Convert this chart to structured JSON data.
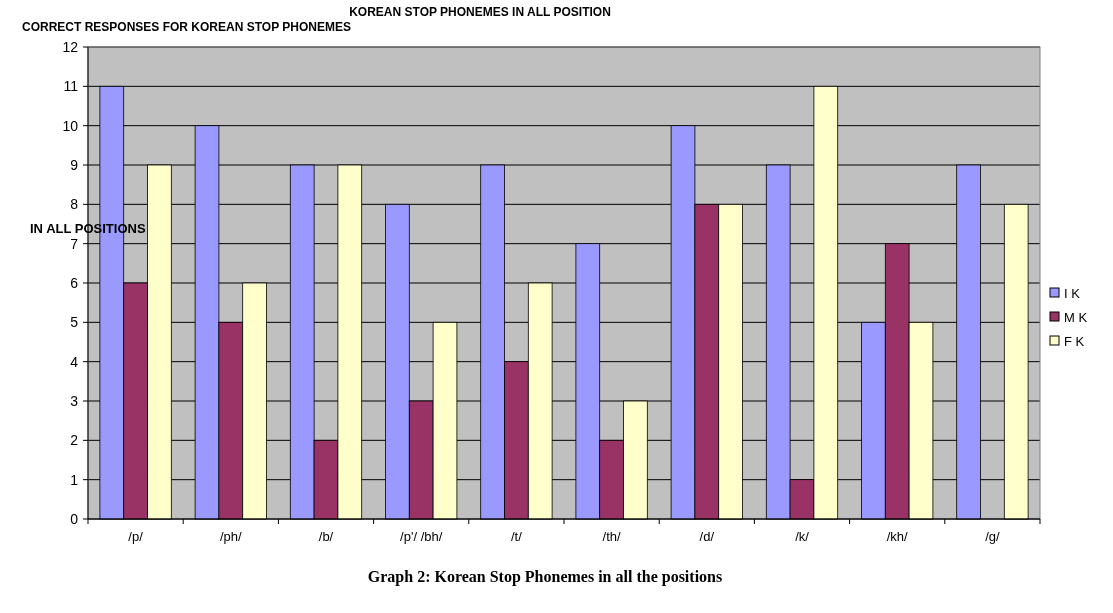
{
  "chart_data": {
    "type": "bar",
    "title": "KOREAN STOP PHONEMES IN ALL POSITION",
    "subtitle": "CORRECT RESPONSES FOR KOREAN STOP PHONEMES",
    "ylabel": "IN ALL POSITIONS",
    "categories": [
      "/p/",
      "/ph/",
      "/b/",
      "/p'/ /bh/",
      "/t/",
      "/th/",
      "/d/",
      "/k/",
      "/kh/",
      "/g/"
    ],
    "series": [
      {
        "name": "I K",
        "color": "#9999ff",
        "values": [
          11,
          10,
          9,
          8,
          9,
          7,
          10,
          9,
          5,
          9
        ]
      },
      {
        "name": "M K",
        "color": "#993366",
        "values": [
          6,
          5,
          2,
          3,
          4,
          2,
          8,
          1,
          7,
          null
        ]
      },
      {
        "name": "F K",
        "color": "#ffffcc",
        "values": [
          9,
          6,
          9,
          5,
          6,
          3,
          8,
          11,
          5,
          8
        ]
      }
    ],
    "ylim": [
      0,
      12
    ],
    "yticks": [
      0,
      1,
      2,
      3,
      4,
      5,
      6,
      7,
      8,
      9,
      10,
      11,
      12
    ],
    "grid": "y",
    "legend": "right",
    "annotations": [
      "Graph 2: Korean Stop Phonemes in all the positions"
    ]
  }
}
